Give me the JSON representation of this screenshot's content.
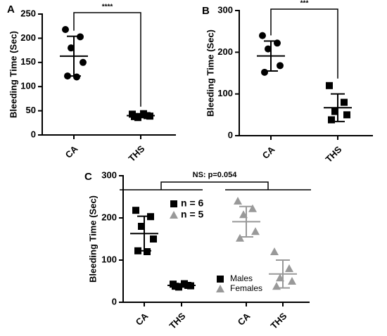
{
  "chart_data": [
    {
      "type": "dot",
      "panel": "A",
      "y_label": "Bleeding Time (Sec)",
      "categories": [
        "CA",
        "THS"
      ],
      "ylim": [
        0,
        250
      ],
      "yticks": [
        0,
        50,
        100,
        150,
        200,
        250
      ],
      "significance": "****",
      "series": [
        {
          "color": "#000000",
          "markers": [
            "circle",
            "square"
          ],
          "values": [
            [
              218,
              203,
              180,
              150,
              122,
              120
            ],
            [
              43,
              40,
              36,
              39,
              38,
              44
            ]
          ],
          "means": [
            163,
            40
          ],
          "sds": [
            41,
            4
          ]
        }
      ]
    },
    {
      "type": "dot",
      "panel": "B",
      "y_label": "Bleeding Time (Sec)",
      "categories": [
        "CA",
        "THS"
      ],
      "ylim": [
        0,
        300
      ],
      "yticks": [
        0,
        100,
        200,
        300
      ],
      "significance": "***",
      "series": [
        {
          "color": "#000000",
          "markers": [
            "circle",
            "square"
          ],
          "values": [
            [
              240,
              222,
              208,
              168,
              152
            ],
            [
              120,
              80,
              58,
              50,
              38
            ]
          ],
          "means": [
            191,
            67
          ],
          "sds": [
            36,
            33
          ]
        }
      ]
    },
    {
      "type": "dot",
      "panel": "C",
      "y_label": "Bleeding Time (Sec)",
      "categories": [
        "CA",
        "THS",
        "CA",
        "THS"
      ],
      "ylim": [
        0,
        300
      ],
      "yticks": [
        0,
        100,
        200,
        300
      ],
      "significance": "NS: p=0.054",
      "annotations": [
        "n = 6",
        "n = 5"
      ],
      "series": [
        {
          "name": "Males",
          "color": "#000000",
          "markers": [
            "square",
            "square",
            null,
            null
          ],
          "values": [
            [
              218,
              203,
              180,
              150,
              122,
              120
            ],
            [
              43,
              40,
              36,
              39,
              38,
              44
            ],
            null,
            null
          ],
          "means": [
            163,
            40,
            null,
            null
          ],
          "sds": [
            41,
            4,
            null,
            null
          ]
        },
        {
          "name": "Females",
          "color": "#999999",
          "markers": [
            null,
            null,
            "triangle",
            "triangle"
          ],
          "values": [
            null,
            null,
            [
              240,
              222,
              208,
              168,
              152
            ],
            [
              120,
              80,
              58,
              50,
              38
            ]
          ],
          "means": [
            null,
            null,
            191,
            67
          ],
          "sds": [
            null,
            null,
            36,
            33
          ]
        }
      ]
    }
  ]
}
